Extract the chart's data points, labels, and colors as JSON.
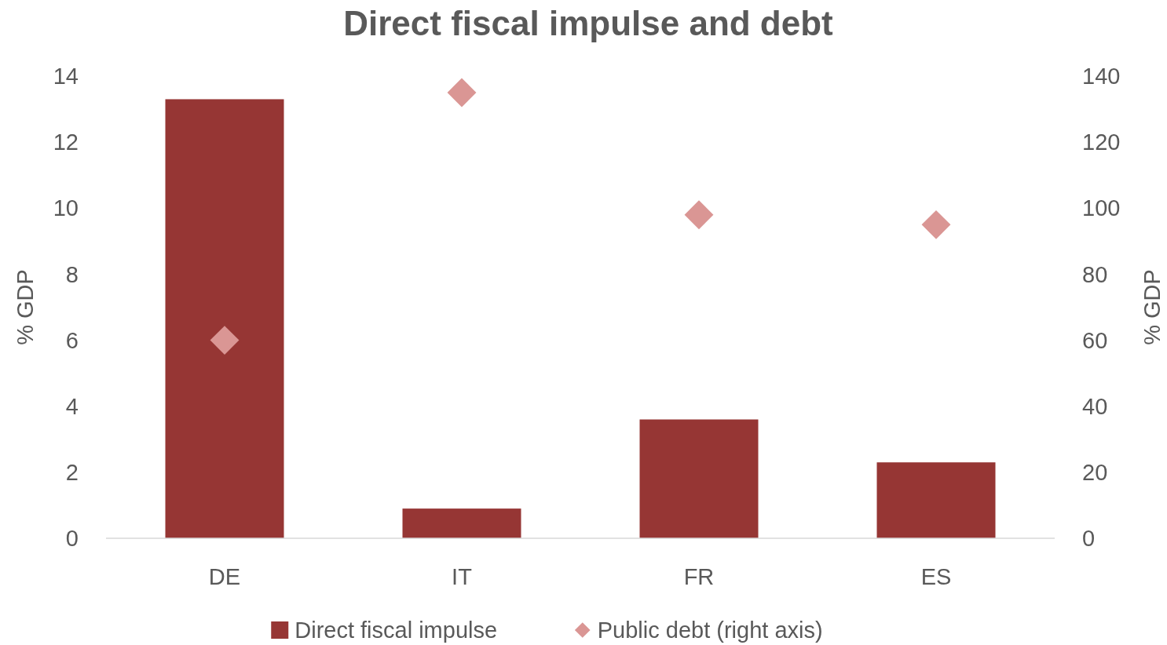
{
  "chart_data": {
    "type": "bar",
    "title": "Direct fiscal impulse and debt",
    "ylabel": "% GDP",
    "y2label": "% GDP",
    "categories": [
      "DE",
      "IT",
      "FR",
      "ES"
    ],
    "series": [
      {
        "name": "Direct fiscal impulse",
        "color": "#963634",
        "values": [
          13.3,
          0.9,
          3.6,
          2.3
        ]
      },
      {
        "name": "Public debt (right axis)",
        "type": "scatter",
        "axis": "y2",
        "marker": "diamond",
        "color": "#da9694",
        "values": [
          60,
          135,
          98,
          95
        ]
      }
    ],
    "ylim": [
      0,
      14
    ],
    "yticks": [
      0,
      2,
      4,
      6,
      8,
      10,
      12,
      14
    ],
    "y2lim": [
      0,
      140
    ],
    "y2ticks": [
      0,
      20,
      40,
      60,
      80,
      100,
      120,
      140
    ],
    "legend": "bottom"
  }
}
